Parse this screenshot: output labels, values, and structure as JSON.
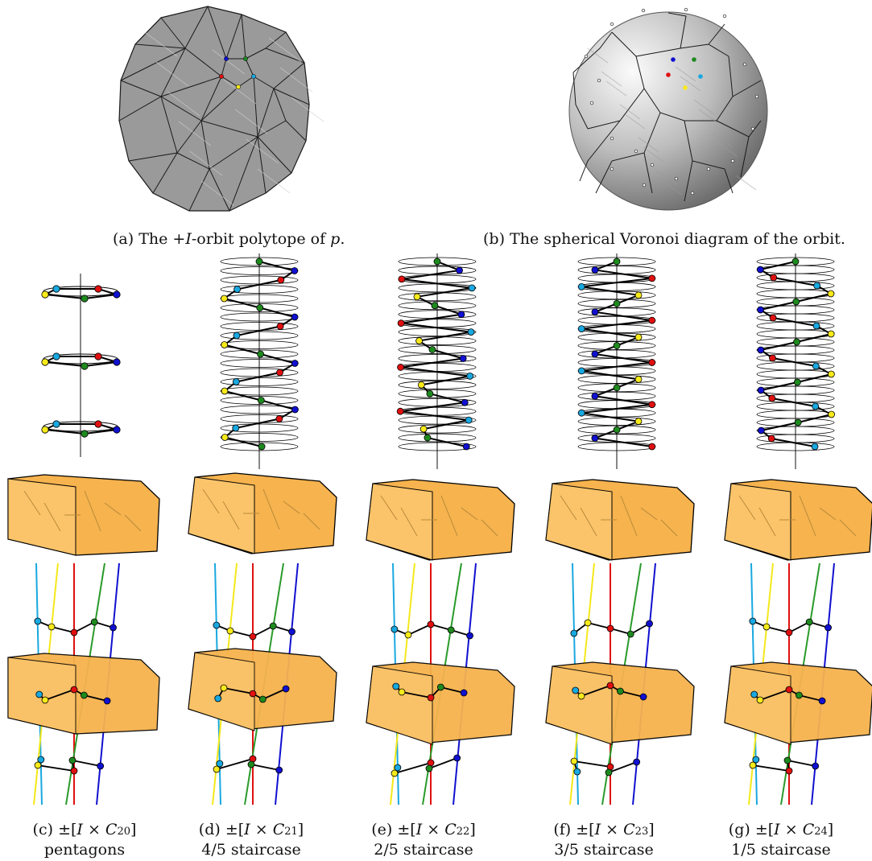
{
  "captions": {
    "a": {
      "label": "(a)",
      "text_pre": "The +",
      "text_var": "I",
      "text_mid": "-orbit polytope of ",
      "text_var2": "p",
      "text_end": "."
    },
    "b": {
      "label": "(b)",
      "text": "The spherical Voronoi diagram of the orbit."
    },
    "c": {
      "label": "(c)",
      "formula_pre": "±[",
      "formula_var": "I",
      "formula_mid": " × ",
      "formula_C": "C",
      "formula_sub": "20",
      "formula_end": "]",
      "subtitle": "pentagons"
    },
    "d": {
      "label": "(d)",
      "formula_pre": "±[",
      "formula_var": "I",
      "formula_mid": " × ",
      "formula_C": "C",
      "formula_sub": "21",
      "formula_end": "]",
      "subtitle": "4/5 staircase"
    },
    "e": {
      "label": "(e)",
      "formula_pre": "±[",
      "formula_var": "I",
      "formula_mid": " × ",
      "formula_C": "C",
      "formula_sub": "22",
      "formula_end": "]",
      "subtitle": "2/5 staircase"
    },
    "f": {
      "label": "(f)",
      "formula_pre": "±[",
      "formula_var": "I",
      "formula_mid": " × ",
      "formula_C": "C",
      "formula_sub": "23",
      "formula_end": "]",
      "subtitle": "3/5 staircase"
    },
    "g": {
      "label": "(g)",
      "formula_pre": "±[",
      "formula_var": "I",
      "formula_mid": " × ",
      "formula_C": "C",
      "formula_sub": "24",
      "formula_end": "]",
      "subtitle": "1/5 staircase"
    }
  },
  "colors": {
    "polytope_gray": "#9a9a9a",
    "polytope_edge": "#1a1a1a",
    "sphere_light": "#f4f4f4",
    "sphere_dark": "#7a7a7a",
    "orange_fill": "#f6b34e",
    "orange_light": "#fbc46a",
    "orange_edge": "#b98a3a",
    "axis_gray": "#888888",
    "dot_blue": "#1010d0",
    "dot_green": "#1e8a1e",
    "dot_red": "#e01010",
    "dot_cyan": "#19a8e0",
    "dot_yellow": "#f7ea1a",
    "line_cyan": "#19a8e0",
    "line_yellow": "#f5e81a",
    "line_red": "#e01010",
    "line_green": "#2a9a2a",
    "line_blue": "#1010d0"
  },
  "columns": [
    {
      "id": "c",
      "rings": 3,
      "staircase": "pentagons"
    },
    {
      "id": "d",
      "rings": 21,
      "staircase": "4/5"
    },
    {
      "id": "e",
      "rings": 22,
      "staircase": "2/5"
    },
    {
      "id": "f",
      "rings": 23,
      "staircase": "3/5"
    },
    {
      "id": "g",
      "rings": 24,
      "staircase": "1/5"
    }
  ]
}
